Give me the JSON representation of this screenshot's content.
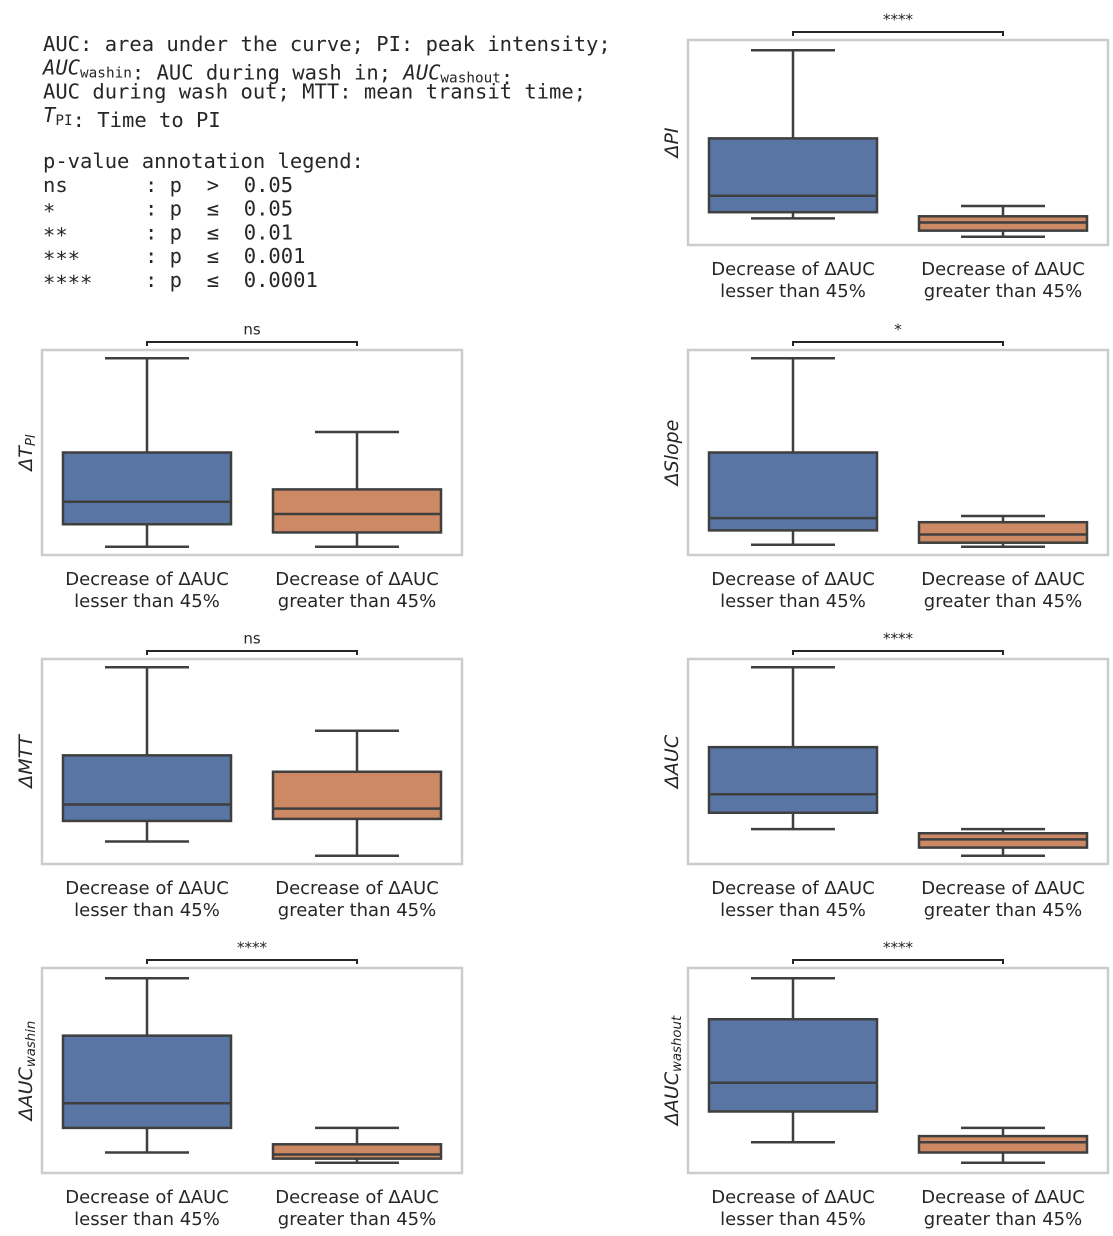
{
  "notes": {
    "definitions": [
      [
        {
          "text": "AUC: area under the curve; PI: peak intensity;"
        }
      ],
      [
        {
          "text": "AUC",
          "sub": "washin"
        },
        {
          "text": ": AUC during wash in; "
        },
        {
          "text": "AUC",
          "sub": "washout"
        },
        {
          "text": ":"
        }
      ],
      [
        {
          "text": "AUC during wash out; MTT: mean transit time;"
        }
      ],
      [
        {
          "text": "T",
          "sub": "PI"
        },
        {
          "text": ": Time to PI"
        }
      ]
    ],
    "legend_title": "p-value annotation legend:",
    "legend_rows": [
      [
        "ns",
        ": p  >  0.05"
      ],
      [
        "*",
        ": p  ≤  0.05"
      ],
      [
        "**",
        ": p  ≤  0.01"
      ],
      [
        "***",
        ": p  ≤  0.001"
      ],
      [
        "****",
        ": p  ≤  0.0001"
      ]
    ]
  },
  "chart_data": [
    {
      "type": "box",
      "ylabel": "ΔPI",
      "annotation": "****",
      "ylim": [
        0,
        100
      ],
      "categories": [
        [
          "Decrease of ΔAUC",
          "lesser than 45%"
        ],
        [
          "Decrease of ΔAUC",
          "greater than 45%"
        ]
      ],
      "boxes": [
        {
          "color": "#5875a4",
          "min": 13,
          "q1": 16,
          "median": 24,
          "q3": 52,
          "max": 95
        },
        {
          "color": "#cc8963",
          "min": 4,
          "q1": 7,
          "median": 11,
          "q3": 14,
          "max": 19
        }
      ]
    },
    {
      "type": "box",
      "ylabel": "ΔT",
      "ylabel_sub": "PI",
      "annotation": "ns",
      "ylim": [
        0,
        100
      ],
      "categories": [
        [
          "Decrease of ΔAUC",
          "lesser than 45%"
        ],
        [
          "Decrease of ΔAUC",
          "greater than 45%"
        ]
      ],
      "boxes": [
        {
          "color": "#5875a4",
          "min": 4,
          "q1": 15,
          "median": 26,
          "q3": 50,
          "max": 96
        },
        {
          "color": "#cc8963",
          "min": 4,
          "q1": 11,
          "median": 20,
          "q3": 32,
          "max": 60
        }
      ]
    },
    {
      "type": "box",
      "ylabel": "ΔSlope",
      "annotation": "*",
      "ylim": [
        0,
        100
      ],
      "categories": [
        [
          "Decrease of ΔAUC",
          "lesser than 45%"
        ],
        [
          "Decrease of ΔAUC",
          "greater than 45%"
        ]
      ],
      "boxes": [
        {
          "color": "#5875a4",
          "min": 5,
          "q1": 12,
          "median": 18,
          "q3": 50,
          "max": 96
        },
        {
          "color": "#cc8963",
          "min": 4,
          "q1": 6,
          "median": 10,
          "q3": 16,
          "max": 19
        }
      ]
    },
    {
      "type": "box",
      "ylabel": "ΔMTT",
      "annotation": "ns",
      "ylim": [
        0,
        100
      ],
      "categories": [
        [
          "Decrease of ΔAUC",
          "lesser than 45%"
        ],
        [
          "Decrease of ΔAUC",
          "greater than 45%"
        ]
      ],
      "boxes": [
        {
          "color": "#5875a4",
          "min": 11,
          "q1": 21,
          "median": 29,
          "q3": 53,
          "max": 96
        },
        {
          "color": "#cc8963",
          "min": 4,
          "q1": 22,
          "median": 27,
          "q3": 45,
          "max": 65
        }
      ]
    },
    {
      "type": "box",
      "ylabel": "ΔAUC",
      "annotation": "****",
      "ylim": [
        0,
        100
      ],
      "categories": [
        [
          "Decrease of ΔAUC",
          "lesser than 45%"
        ],
        [
          "Decrease of ΔAUC",
          "greater than 45%"
        ]
      ],
      "boxes": [
        {
          "color": "#5875a4",
          "min": 17,
          "q1": 25,
          "median": 34,
          "q3": 57,
          "max": 96
        },
        {
          "color": "#cc8963",
          "min": 4,
          "q1": 8,
          "median": 12,
          "q3": 15,
          "max": 17
        }
      ]
    },
    {
      "type": "box",
      "ylabel": "ΔAUC",
      "ylabel_sub": "washin",
      "annotation": "****",
      "ylim": [
        0,
        100
      ],
      "categories": [
        [
          "Decrease of ΔAUC",
          "lesser than 45%"
        ],
        [
          "Decrease of ΔAUC",
          "greater than 45%"
        ]
      ],
      "boxes": [
        {
          "color": "#5875a4",
          "min": 10,
          "q1": 22,
          "median": 34,
          "q3": 67,
          "max": 95
        },
        {
          "color": "#cc8963",
          "min": 5,
          "q1": 7,
          "median": 9,
          "q3": 14,
          "max": 22
        }
      ]
    },
    {
      "type": "box",
      "ylabel": "ΔAUC",
      "ylabel_sub": "washout",
      "annotation": "****",
      "ylim": [
        0,
        100
      ],
      "categories": [
        [
          "Decrease of ΔAUC",
          "lesser than 45%"
        ],
        [
          "Decrease of ΔAUC",
          "greater than 45%"
        ]
      ],
      "boxes": [
        {
          "color": "#5875a4",
          "min": 15,
          "q1": 30,
          "median": 44,
          "q3": 75,
          "max": 95
        },
        {
          "color": "#cc8963",
          "min": 5,
          "q1": 10,
          "median": 15,
          "q3": 18,
          "max": 22
        }
      ]
    }
  ]
}
